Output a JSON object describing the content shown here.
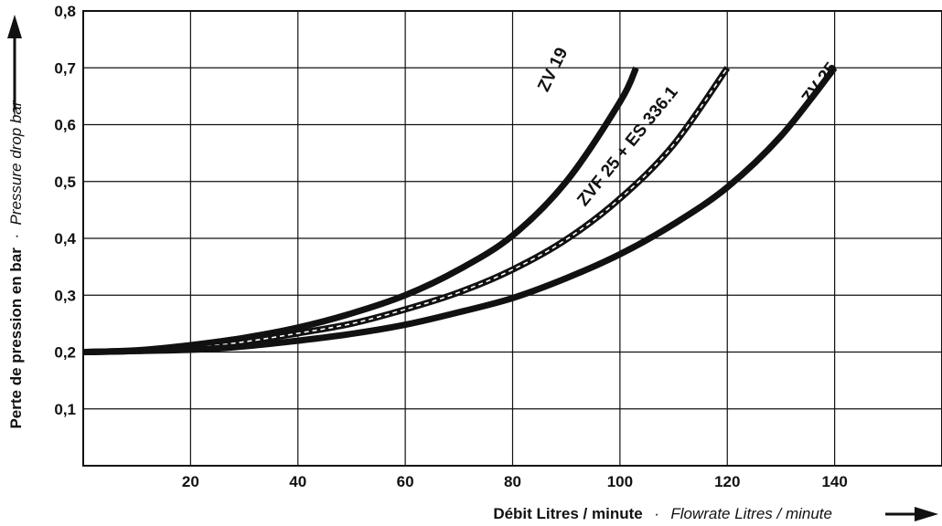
{
  "chart_data": {
    "type": "line",
    "title": "",
    "xlabel": {
      "main": "Débit Litres / minute",
      "separator": "·",
      "secondary": "Flowrate Litres / minute"
    },
    "ylabel": {
      "main": "Perte de pression en bar",
      "separator": "·",
      "secondary": "Pressure drop bar"
    },
    "xlim": [
      0,
      160
    ],
    "ylim": [
      0,
      0.8
    ],
    "grid": true,
    "x_ticks": [
      {
        "value": 20,
        "label": "20"
      },
      {
        "value": 40,
        "label": "40"
      },
      {
        "value": 60,
        "label": "60"
      },
      {
        "value": 80,
        "label": "80"
      },
      {
        "value": 100,
        "label": "100"
      },
      {
        "value": 120,
        "label": "120"
      },
      {
        "value": 140,
        "label": "140"
      }
    ],
    "y_ticks": [
      {
        "value": 0.1,
        "label": "0,1"
      },
      {
        "value": 0.2,
        "label": "0,2"
      },
      {
        "value": 0.3,
        "label": "0,3"
      },
      {
        "value": 0.4,
        "label": "0,4"
      },
      {
        "value": 0.5,
        "label": "0,5"
      },
      {
        "value": 0.6,
        "label": "0,6"
      },
      {
        "value": 0.7,
        "label": "0,7"
      },
      {
        "value": 0.8,
        "label": "0,8"
      }
    ],
    "series": [
      {
        "name": "ZV 19",
        "style": "solid",
        "color": "#111111",
        "x": [
          0,
          10,
          20,
          30,
          40,
          50,
          60,
          70,
          80,
          90,
          100,
          103
        ],
        "y": [
          0.2,
          0.203,
          0.212,
          0.225,
          0.243,
          0.268,
          0.3,
          0.345,
          0.405,
          0.5,
          0.64,
          0.7
        ]
      },
      {
        "name": "ZVF 25 + ES 336.1",
        "style": "dashed",
        "color": "#111111",
        "x": [
          0,
          10,
          20,
          30,
          40,
          50,
          60,
          70,
          80,
          90,
          100,
          110,
          120
        ],
        "y": [
          0.2,
          0.202,
          0.207,
          0.218,
          0.233,
          0.25,
          0.275,
          0.305,
          0.345,
          0.398,
          0.47,
          0.565,
          0.7
        ]
      },
      {
        "name": "ZV 25",
        "style": "solid",
        "color": "#111111",
        "x": [
          0,
          20,
          30,
          40,
          50,
          60,
          70,
          80,
          90,
          100,
          110,
          120,
          130,
          140
        ],
        "y": [
          0.2,
          0.204,
          0.21,
          0.22,
          0.232,
          0.248,
          0.27,
          0.295,
          0.33,
          0.372,
          0.425,
          0.49,
          0.58,
          0.7
        ]
      }
    ]
  }
}
